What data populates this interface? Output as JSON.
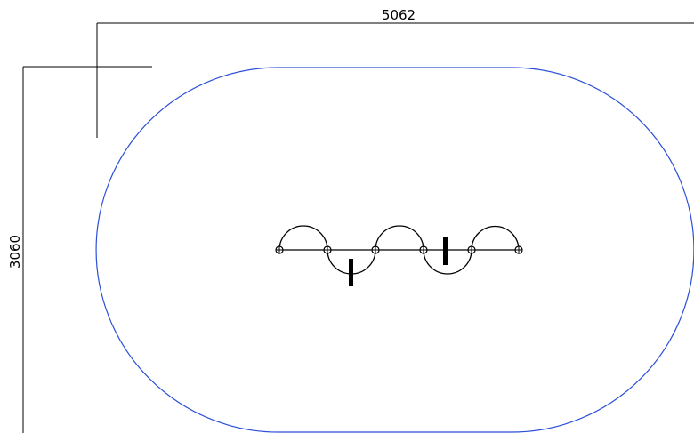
{
  "dimensions": {
    "width_label": "5062",
    "height_label": "3060"
  },
  "colors": {
    "outline": "#2b4fd8",
    "linework": "#000000",
    "background": "#ffffff"
  }
}
